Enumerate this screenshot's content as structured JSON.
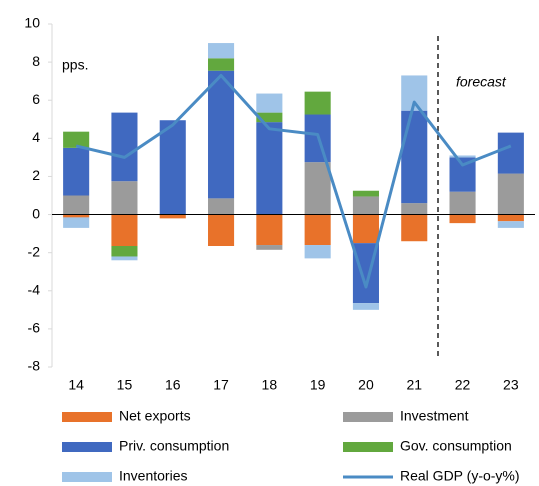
{
  "chart_data": {
    "type": "bar",
    "categories": [
      "14",
      "15",
      "16",
      "17",
      "18",
      "19",
      "20",
      "21",
      "22",
      "23"
    ],
    "series": [
      {
        "name": "Net exports",
        "color": "#e8722a",
        "values": [
          -0.15,
          -1.65,
          -0.2,
          -1.65,
          -1.6,
          -1.6,
          -1.5,
          -1.4,
          -0.45,
          -0.35
        ]
      },
      {
        "name": "Investment",
        "color": "#9b9b9b",
        "values": [
          1.0,
          1.75,
          0,
          0.85,
          -0.25,
          2.75,
          0.95,
          0.6,
          1.2,
          2.15
        ]
      },
      {
        "name": "Priv. consumption",
        "color": "#4069c0",
        "values": [
          2.5,
          3.6,
          4.95,
          6.7,
          4.85,
          2.5,
          -3.15,
          4.85,
          1.8,
          2.15
        ]
      },
      {
        "name": "Gov. consumption",
        "color": "#62a83e",
        "values": [
          0.85,
          -0.55,
          0,
          0.65,
          0.5,
          1.2,
          0.3,
          0,
          0,
          0
        ]
      },
      {
        "name": "Inventories",
        "color": "#9fc4e8",
        "values": [
          -0.55,
          -0.2,
          0,
          0.8,
          1.0,
          -0.7,
          -0.35,
          1.85,
          0.1,
          -0.35
        ]
      },
      {
        "name": "Real GDP (y-o-y%)",
        "type": "line",
        "color": "#4a8bc4",
        "values": [
          3.6,
          3.0,
          4.7,
          7.3,
          4.5,
          4.2,
          -3.8,
          5.9,
          2.6,
          3.6
        ]
      }
    ],
    "annotations": [
      "pps.",
      "forecast"
    ],
    "ylim": [
      -8,
      10
    ],
    "yticks": [
      -8,
      -6,
      -4,
      -2,
      0,
      2,
      4,
      6,
      8,
      10
    ],
    "grid": false,
    "legend": "bottom"
  }
}
